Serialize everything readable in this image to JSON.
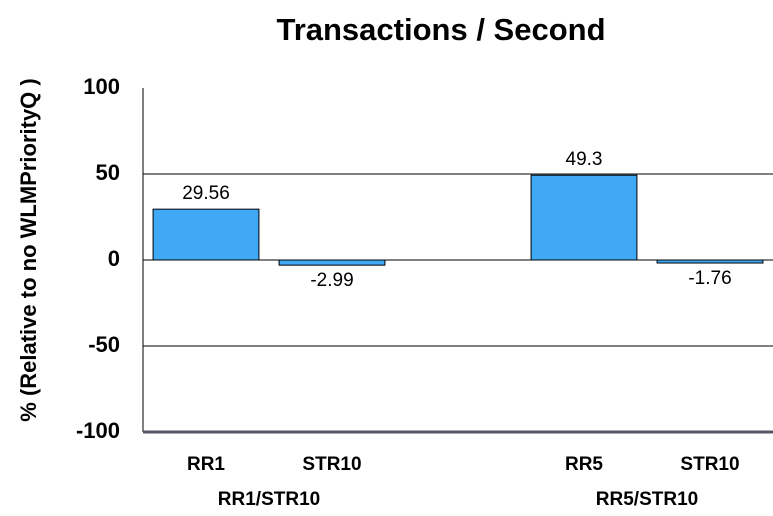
{
  "chart_data": {
    "type": "bar",
    "title": "Transactions / Second",
    "y_label": "% (Relative to no WLMPriorityQ )",
    "categories": [
      "RR1",
      "STR10",
      null,
      "RR5",
      "STR10"
    ],
    "values": [
      29.56,
      -2.99,
      null,
      49.3,
      -1.76
    ],
    "groups": [
      "RR1/STR10",
      "RR5/STR10"
    ],
    "color": "#3fa9f5",
    "ylim": [
      -100,
      100
    ],
    "yticks": [
      -100,
      -50,
      0,
      50,
      100
    ],
    "grid": true
  }
}
